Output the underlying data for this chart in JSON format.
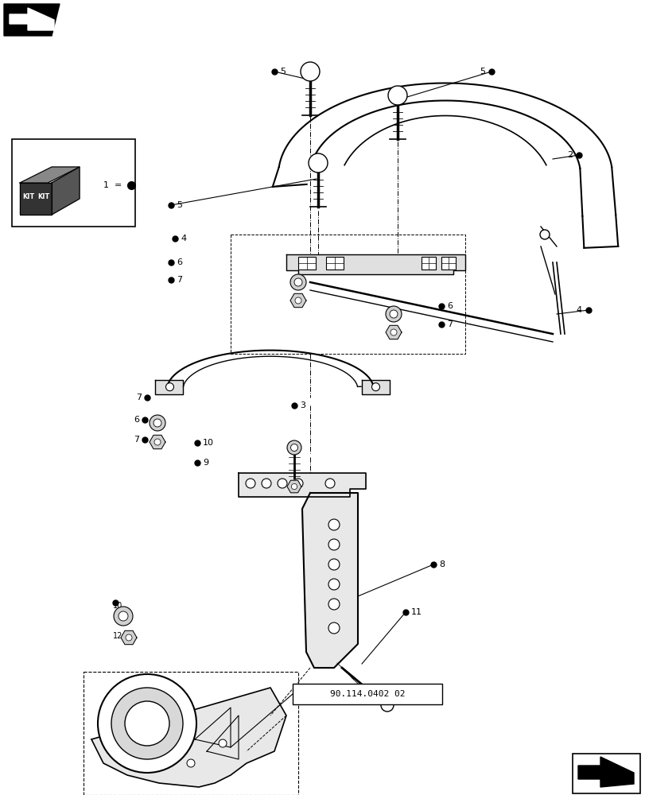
{
  "bg_color": "#ffffff",
  "line_color": "#000000",
  "dot_color": "#000000",
  "fig_width": 8.12,
  "fig_height": 10.0,
  "dpi": 100,
  "ref_code": "90.114.0402 02"
}
